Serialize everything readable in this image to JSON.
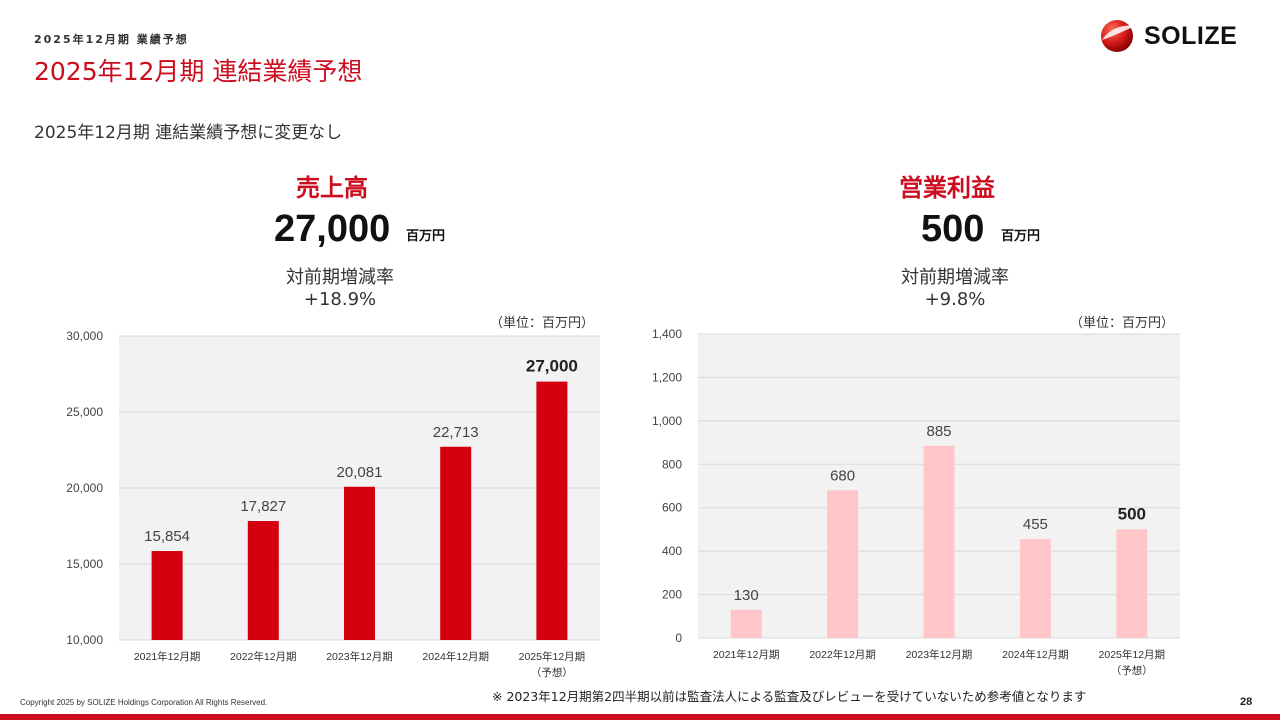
{
  "header": {
    "section_label": "2025年12月期 業績予想",
    "title": "2025年12月期 連結業績予想",
    "logo_text": "SOLIZE"
  },
  "subtitle": "2025年12月期 連結業績予想に変更なし",
  "kpis": [
    {
      "title": "売上高",
      "value": "27,000",
      "unit": "百万円",
      "rate_label": "対前期増減率",
      "rate": "+18.9%"
    },
    {
      "title": "営業利益",
      "value": "500",
      "unit": "百万円",
      "rate_label": "対前期増減率",
      "rate": "+9.8%"
    }
  ],
  "unit_note": "（単位：百万円）",
  "colors": {
    "brand_red": "#cc0d1f",
    "bar_red": "#d4000f",
    "bar_pink": "#ffc5c9",
    "plot_bg": "#f2f2f2"
  },
  "chart_data": [
    {
      "type": "bar",
      "categories": [
        "2021年12月期",
        "2022年12月期",
        "2023年12月期",
        "2024年12月期",
        "2025年12月期"
      ],
      "category_notes": [
        "",
        "",
        "",
        "",
        "（予想）"
      ],
      "values": [
        15854,
        17827,
        20081,
        22713,
        27000
      ],
      "value_labels": [
        "15,854",
        "17,827",
        "20,081",
        "22,713",
        "27,000"
      ],
      "highlight_index": 4,
      "ylim": [
        10000,
        30000
      ],
      "yticks": [
        10000,
        15000,
        20000,
        25000,
        30000
      ],
      "ytick_labels": [
        "10,000",
        "15,000",
        "20,000",
        "25,000",
        "30,000"
      ],
      "grid": true,
      "color": "#d4000f"
    },
    {
      "type": "bar",
      "categories": [
        "2021年12月期",
        "2022年12月期",
        "2023年12月期",
        "2024年12月期",
        "2025年12月期"
      ],
      "category_notes": [
        "",
        "",
        "",
        "",
        "（予想）"
      ],
      "values": [
        130,
        680,
        885,
        455,
        500
      ],
      "value_labels": [
        "130",
        "680",
        "885",
        "455",
        "500"
      ],
      "highlight_index": 4,
      "ylim": [
        0,
        1400
      ],
      "yticks": [
        0,
        200,
        400,
        600,
        800,
        1000,
        1200,
        1400
      ],
      "ytick_labels": [
        "0",
        "200",
        "400",
        "600",
        "800",
        "1,000",
        "1,200",
        "1,400"
      ],
      "grid": true,
      "color": "#ffc5c9"
    }
  ],
  "footnote": "※ 2023年12月期第2四半期以前は監査法人による監査及びレビューを受けていないため参考値となります",
  "copyright": "Copyright 2025 by SOLIZE Holdings Corporation All Rights Reserved.",
  "page_number": "28"
}
